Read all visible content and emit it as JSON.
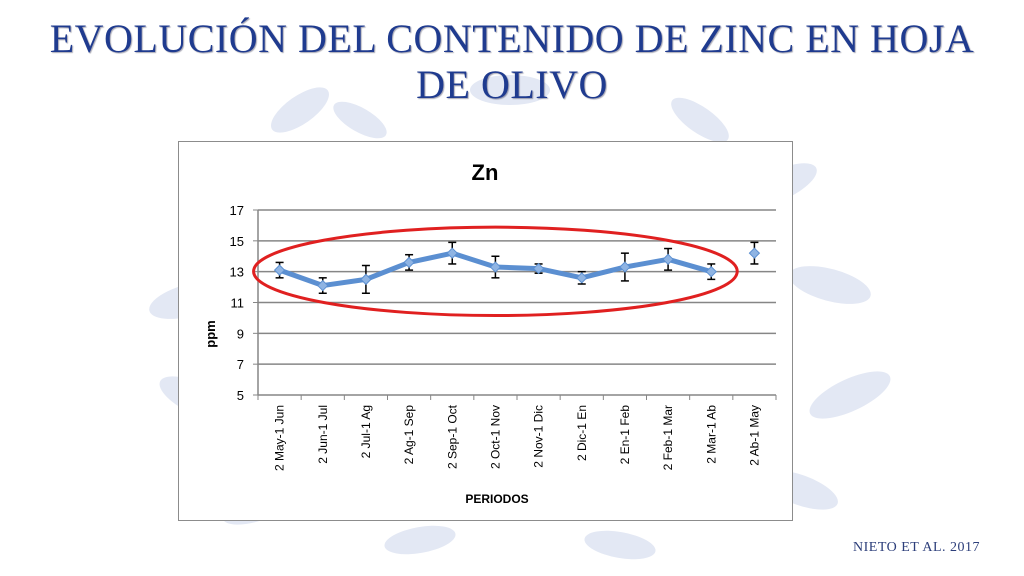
{
  "slide": {
    "title_line1": "EVOLUCIÓN DEL CONTENIDO DE ZINC EN HOJA",
    "title_line2": "DE OLIVO",
    "citation": "NIETO ET AL. 2017"
  },
  "colors": {
    "title": "#1f3b8f",
    "line": "#5b8fd1",
    "marker": "#8fb4e3",
    "highlight_ellipse": "#e02020",
    "decor": "#e3e8f4"
  },
  "chart_data": {
    "type": "line",
    "title": "Zn",
    "xlabel": "PERIODOS",
    "ylabel": "ppm",
    "ylim": [
      5,
      17
    ],
    "yticks": [
      5,
      7,
      9,
      11,
      13,
      15,
      17
    ],
    "grid": true,
    "legend": "none",
    "categories": [
      "2 May-1 Jun",
      "2 Jun-1 Jul",
      "2 Jul-1 Ag",
      "2 Ag-1 Sep",
      "2 Sep-1 Oct",
      "2 Oct-1 Nov",
      "2 Nov-1 Dic",
      "2 Dic-1 En",
      "2 En-1 Feb",
      "2 Feb-1 Mar",
      "2 Mar-1 Ab",
      "2 Ab-1 May"
    ],
    "series": [
      {
        "values": [
          13.1,
          12.1,
          12.5,
          13.6,
          14.2,
          13.3,
          13.2,
          12.6,
          13.3,
          13.8,
          13.0,
          14.2
        ],
        "errors": [
          0.5,
          0.5,
          0.9,
          0.5,
          0.7,
          0.7,
          0.3,
          0.4,
          0.9,
          0.7,
          0.5,
          0.7
        ],
        "connected_points": 11
      }
    ],
    "annotation": "red ellipse highlighting periods 2 May-1 Jun to 2 Mar-1 Ab"
  }
}
